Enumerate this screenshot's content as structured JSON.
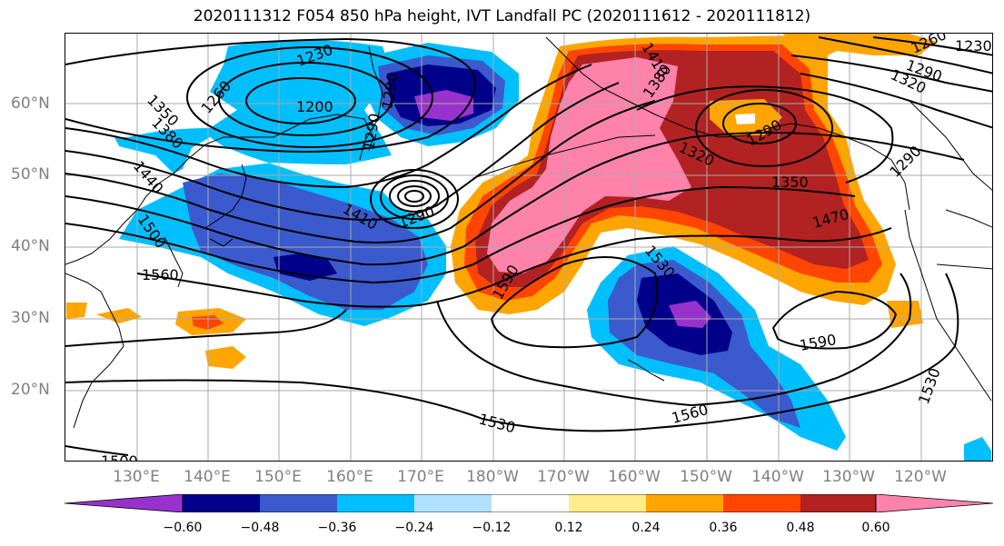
{
  "title": "2020111312 F054 850 hPa height, IVT Landfall PC (2020111612 - 2020111812)",
  "latitude_labels": [
    "60°N",
    "50°N",
    "40°N",
    "30°N",
    "20°N"
  ],
  "longitude_labels": [
    "130°E",
    "140°E",
    "150°E",
    "160°E",
    "170°E",
    "180°W",
    "170°W",
    "160°W",
    "150°W",
    "140°W",
    "130°W",
    "120°W"
  ],
  "contour_labels": [
    "1230",
    "1260",
    "1290",
    "1200",
    "1290",
    "1350",
    "1380",
    "1440",
    "1500",
    "1410",
    "1290",
    "1560",
    "1590",
    "1530",
    "1530",
    "1560",
    "1590",
    "1530",
    "1380",
    "1320",
    "1290",
    "1350",
    "1470",
    "1290",
    "1410",
    "1260",
    "1290",
    "1320",
    "1230",
    "1500"
  ],
  "colorbar": {
    "tick_labels": [
      "−0.60",
      "−0.48",
      "−0.36",
      "−0.24",
      "−0.12",
      "0.12",
      "0.24",
      "0.36",
      "0.48",
      "0.60"
    ],
    "colors": [
      "#9932cc",
      "#00008b",
      "#3a5acd",
      "#00bfff",
      "#b0e2ff",
      "#ffffff",
      "#ffec8b",
      "#ffa500",
      "#ff4500",
      "#b22222",
      "#ff82ab"
    ]
  },
  "shading_colors": {
    "pink": "#ff82ab",
    "firebrick": "#b22222",
    "orangered": "#ff4500",
    "orange": "#ffa500",
    "navy": "#00008b",
    "royal": "#3a5acd",
    "sky": "#00bfff",
    "purple": "#9932cc"
  }
}
